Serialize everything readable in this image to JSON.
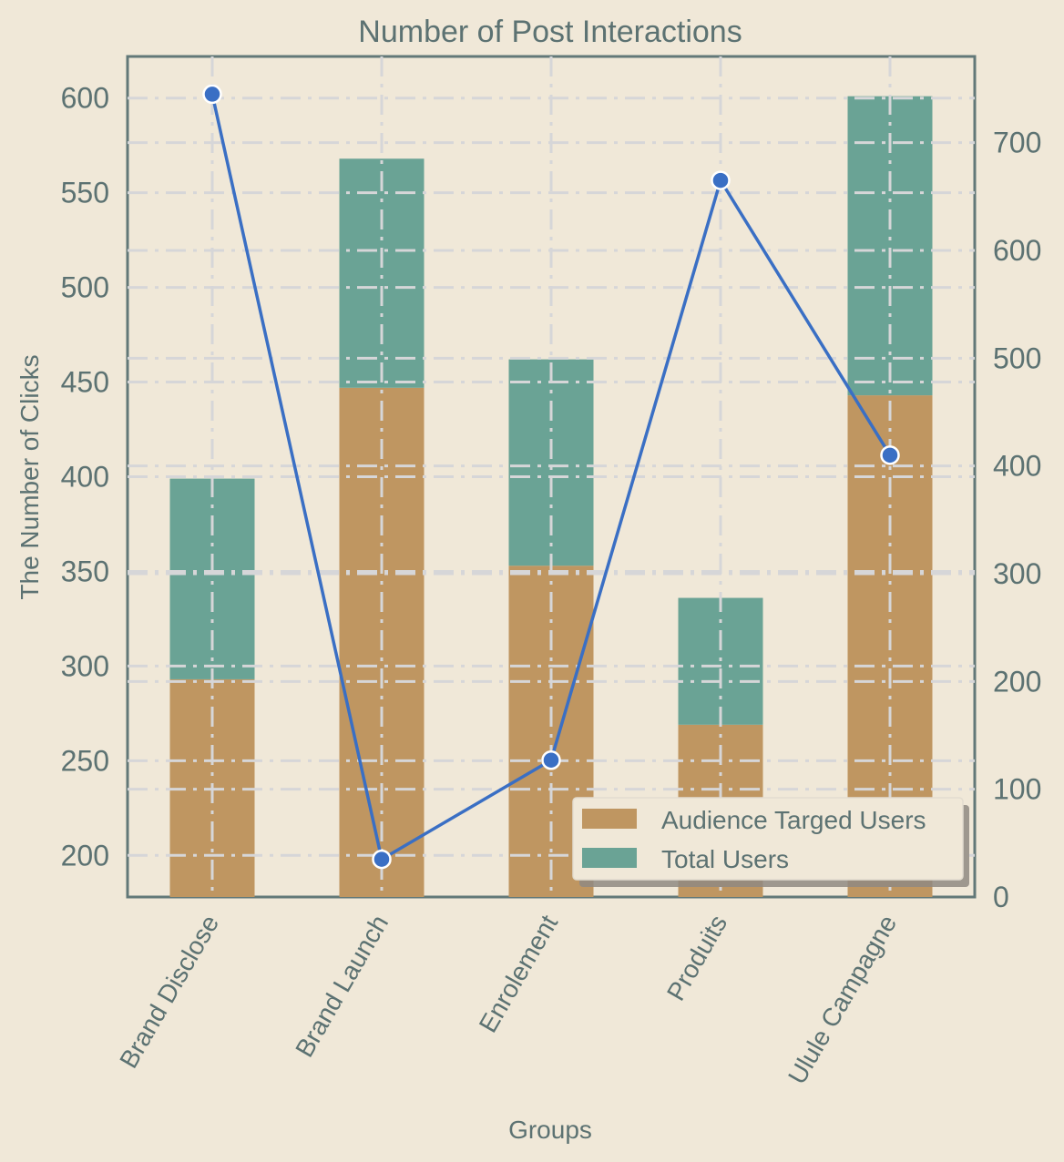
{
  "chart_data": {
    "type": "bar",
    "title": "Number of Post Interactions",
    "xlabel": "Groups",
    "ylabel": "The Number of Clicks",
    "categories": [
      "Brand Disclose",
      "Brand Launch",
      "Enrolement",
      "Produits",
      "Ulule Campagne"
    ],
    "stacked": true,
    "series": [
      {
        "name": "Audience Targed Users",
        "values": [
          293,
          447,
          353,
          269,
          443
        ],
        "color": "#bf9661"
      },
      {
        "name": "Total Users",
        "values": [
          106,
          121,
          109,
          67,
          158
        ],
        "color": "#6aa395"
      }
    ],
    "line_series": {
      "axis": "right",
      "values": [
        745,
        35,
        127,
        665,
        410
      ],
      "color": "#3a6fc4"
    },
    "ylim": [
      178,
      622
    ],
    "y2lim": [
      0,
      780
    ],
    "yticks": [
      200,
      250,
      300,
      350,
      400,
      450,
      500,
      550,
      600
    ],
    "y2ticks": [
      0,
      100,
      200,
      300,
      400,
      500,
      600,
      700
    ],
    "grid": true,
    "legend_position": "lower-right"
  }
}
